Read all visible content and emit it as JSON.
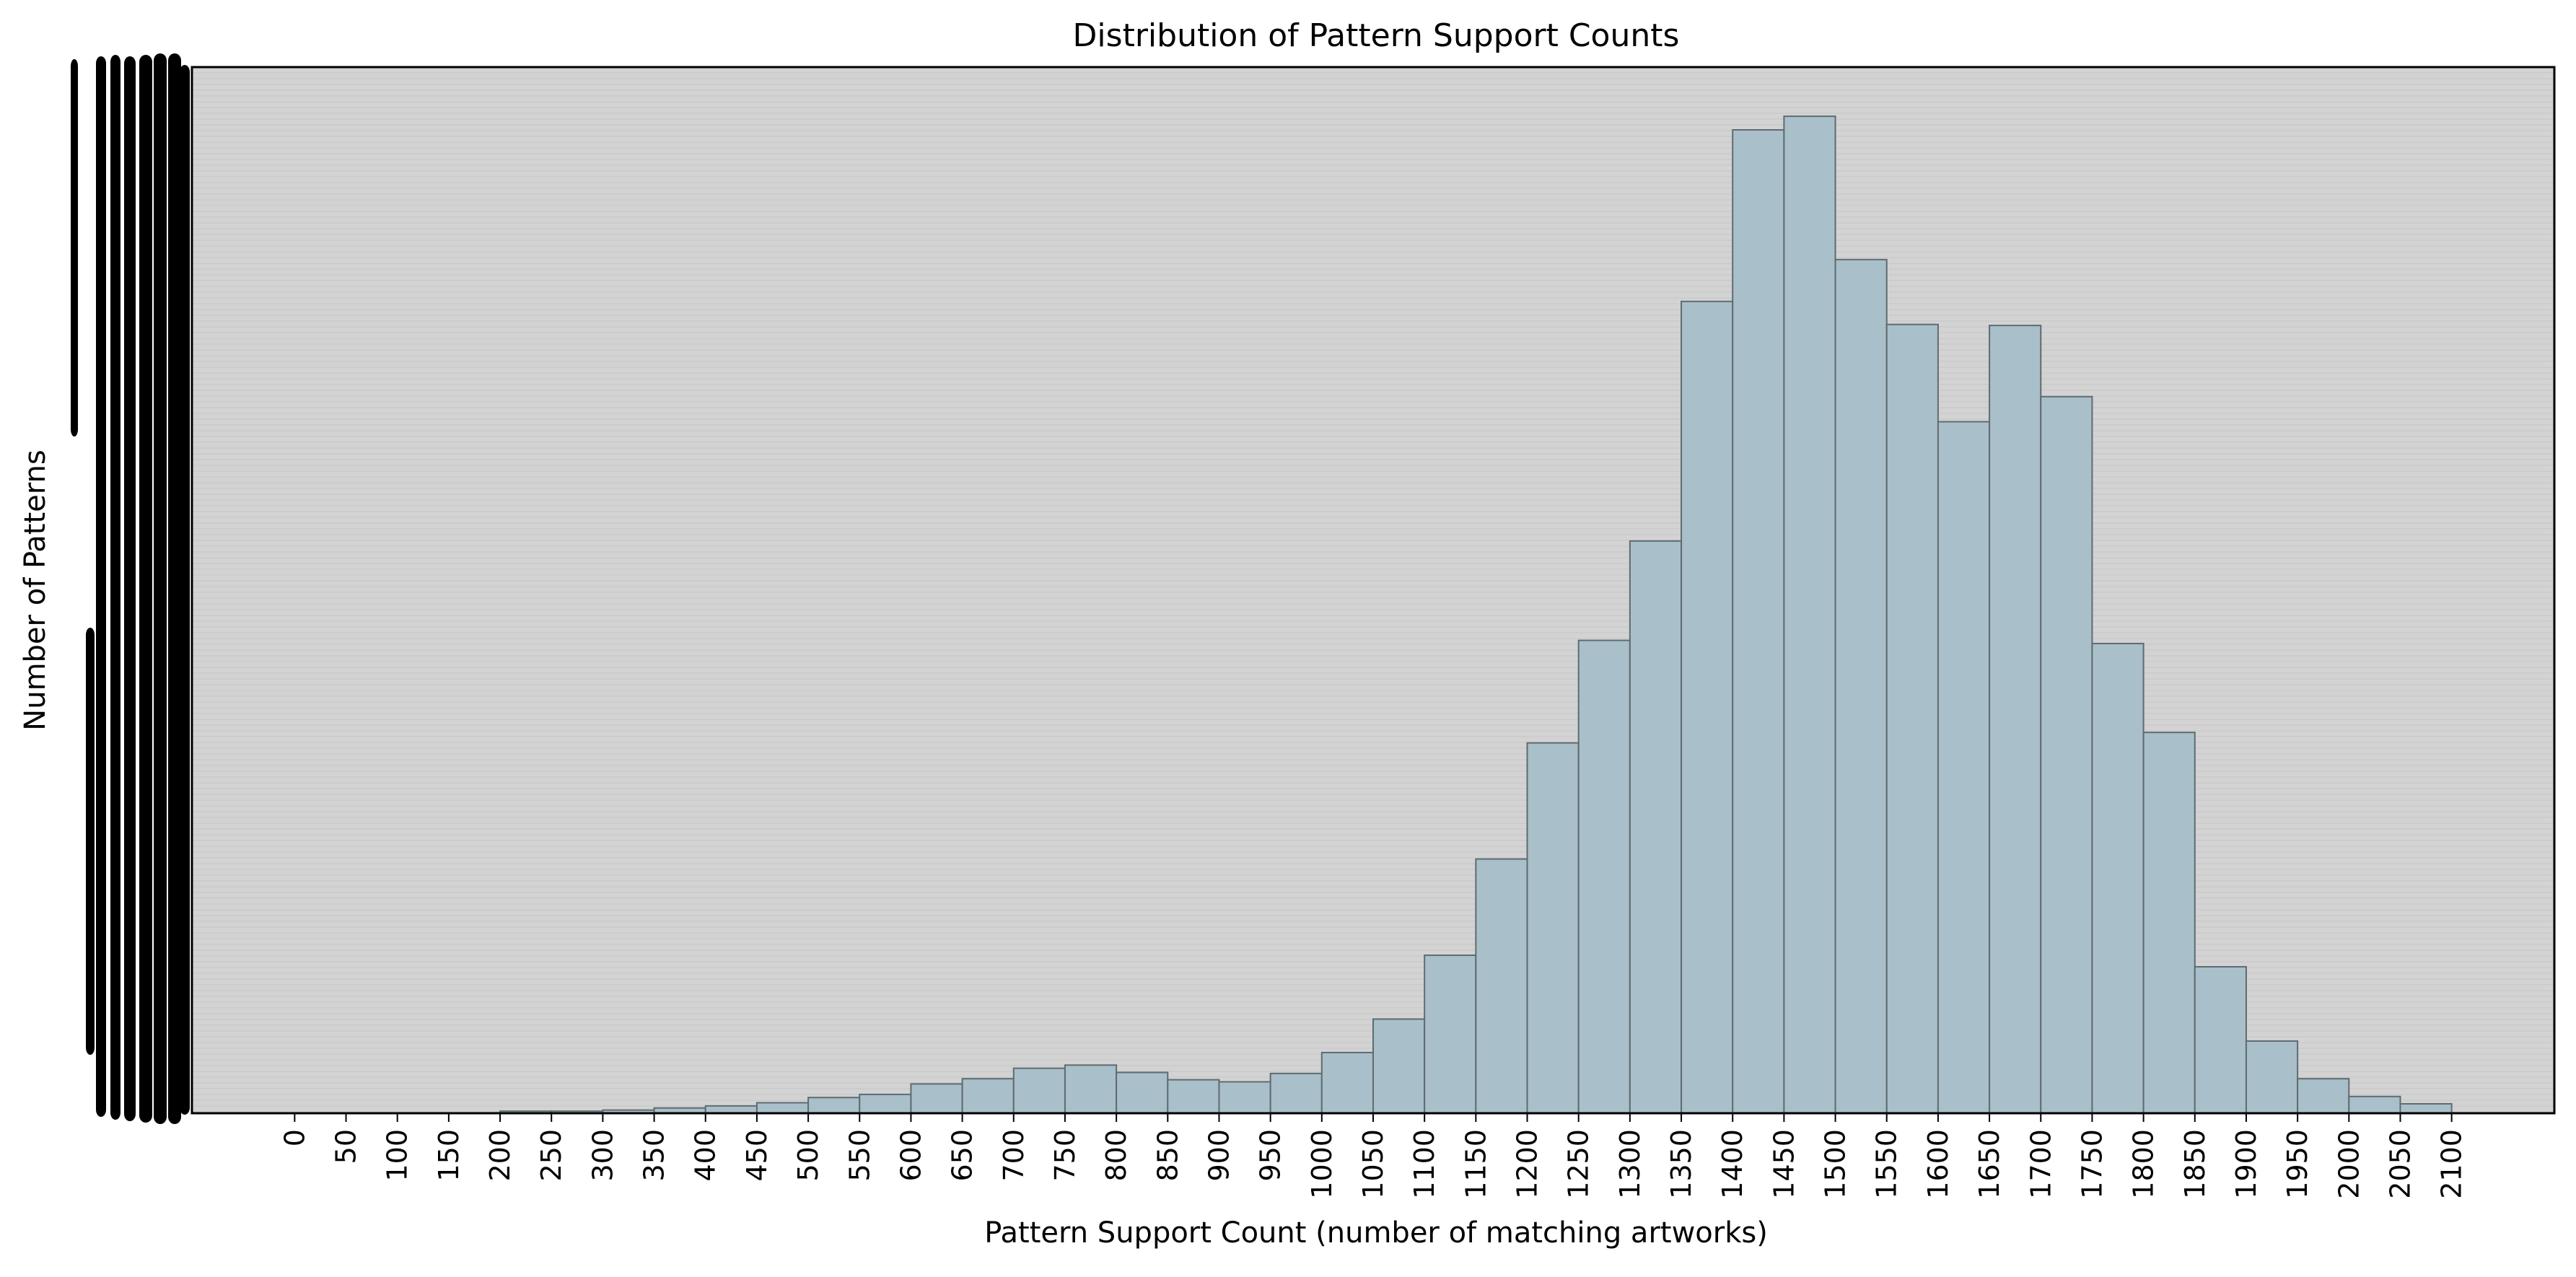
{
  "chart_data": {
    "type": "bar",
    "title": "Distribution of Pattern Support Counts",
    "xlabel": "Pattern Support Count (number of matching artworks)",
    "ylabel": "Number of Patterns",
    "bin_width": 50,
    "xlim": [
      -100,
      2200
    ],
    "ylim": [
      0,
      100
    ],
    "y_tick_labels_legible": false,
    "x_ticks": [
      0,
      50,
      100,
      150,
      200,
      250,
      300,
      350,
      400,
      450,
      500,
      550,
      600,
      650,
      700,
      750,
      800,
      850,
      900,
      950,
      1000,
      1050,
      1100,
      1150,
      1200,
      1250,
      1300,
      1350,
      1400,
      1450,
      1500,
      1550,
      1600,
      1650,
      1700,
      1750,
      1800,
      1850,
      1900,
      1950,
      2000,
      2050,
      2100
    ],
    "bins": [
      {
        "x0": 200,
        "x1": 250,
        "value": 0.2
      },
      {
        "x0": 250,
        "x1": 300,
        "value": 0.2
      },
      {
        "x0": 300,
        "x1": 350,
        "value": 0.3
      },
      {
        "x0": 350,
        "x1": 400,
        "value": 0.5
      },
      {
        "x0": 400,
        "x1": 450,
        "value": 0.7
      },
      {
        "x0": 450,
        "x1": 500,
        "value": 1.0
      },
      {
        "x0": 500,
        "x1": 550,
        "value": 1.5
      },
      {
        "x0": 550,
        "x1": 600,
        "value": 1.8
      },
      {
        "x0": 600,
        "x1": 650,
        "value": 2.8
      },
      {
        "x0": 650,
        "x1": 700,
        "value": 3.3
      },
      {
        "x0": 700,
        "x1": 750,
        "value": 4.3
      },
      {
        "x0": 750,
        "x1": 800,
        "value": 4.6
      },
      {
        "x0": 800,
        "x1": 850,
        "value": 3.9
      },
      {
        "x0": 850,
        "x1": 900,
        "value": 3.2
      },
      {
        "x0": 900,
        "x1": 950,
        "value": 3.0
      },
      {
        "x0": 950,
        "x1": 1000,
        "value": 3.8
      },
      {
        "x0": 1000,
        "x1": 1050,
        "value": 5.8
      },
      {
        "x0": 1050,
        "x1": 1100,
        "value": 9.0
      },
      {
        "x0": 1100,
        "x1": 1150,
        "value": 15.1
      },
      {
        "x0": 1150,
        "x1": 1200,
        "value": 24.3
      },
      {
        "x0": 1200,
        "x1": 1250,
        "value": 35.4
      },
      {
        "x0": 1250,
        "x1": 1300,
        "value": 45.2
      },
      {
        "x0": 1300,
        "x1": 1350,
        "value": 54.7
      },
      {
        "x0": 1350,
        "x1": 1400,
        "value": 77.6
      },
      {
        "x0": 1400,
        "x1": 1450,
        "value": 94.0
      },
      {
        "x0": 1450,
        "x1": 1500,
        "value": 95.3
      },
      {
        "x0": 1500,
        "x1": 1550,
        "value": 81.6
      },
      {
        "x0": 1550,
        "x1": 1600,
        "value": 75.4
      },
      {
        "x0": 1600,
        "x1": 1650,
        "value": 66.1
      },
      {
        "x0": 1650,
        "x1": 1700,
        "value": 75.3
      },
      {
        "x0": 1700,
        "x1": 1750,
        "value": 68.5
      },
      {
        "x0": 1750,
        "x1": 1800,
        "value": 44.9
      },
      {
        "x0": 1800,
        "x1": 1850,
        "value": 36.4
      },
      {
        "x0": 1850,
        "x1": 1900,
        "value": 14.0
      },
      {
        "x0": 1900,
        "x1": 1950,
        "value": 6.9
      },
      {
        "x0": 1950,
        "x1": 2000,
        "value": 3.3
      },
      {
        "x0": 2000,
        "x1": 2050,
        "value": 1.6
      },
      {
        "x0": 2050,
        "x1": 2100,
        "value": 0.9
      }
    ],
    "grid": true,
    "legend": "none",
    "colors": {
      "plot_background": "#d3d3d3",
      "bar_fill": "#a9bfc9",
      "bar_edge": "#5f6b70",
      "grid_line": "#c6c6c6",
      "y_tick_smudge": "#000000"
    }
  }
}
